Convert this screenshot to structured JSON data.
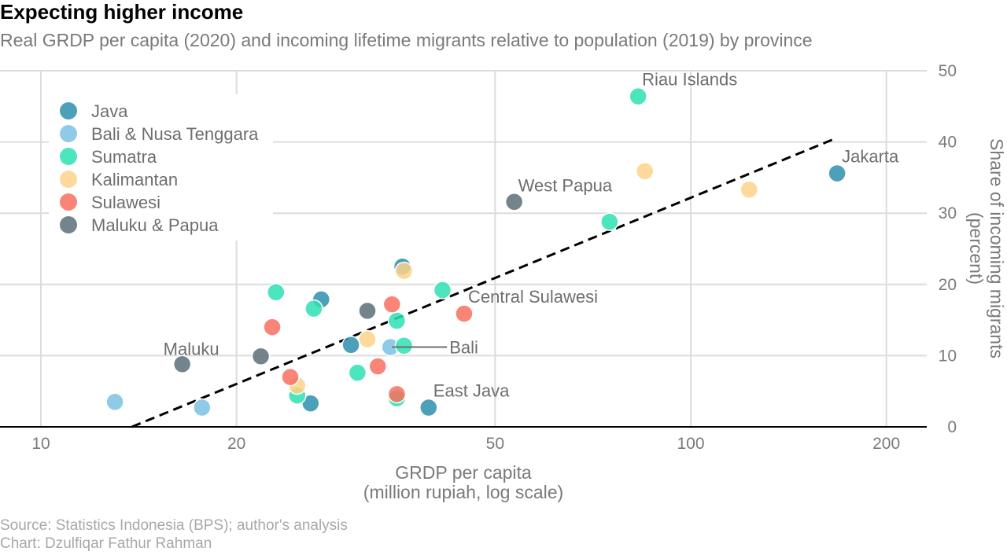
{
  "title": "Expecting higher income",
  "subtitle": "Real GRDP per capita (2020) and incoming lifetime migrants relative to population (2019) by province",
  "caption": {
    "source": "Source: Statistics Indonesia (BPS); author's analysis",
    "chart": "Chart: Dzulfiqar Fathur Rahman"
  },
  "chart_data": {
    "type": "scatter",
    "xlabel_line1": "GRDP per capita",
    "xlabel_line2": "(million rupiah, log scale)",
    "ylabel_line1": "Share of incoming migrants",
    "ylabel_line2": "(percent)",
    "x_scale": "log",
    "xlim": [
      9.5,
      240
    ],
    "ylim": [
      0,
      50
    ],
    "x_ticks": [
      10,
      20,
      50,
      100,
      200
    ],
    "y_ticks": [
      0,
      10,
      20,
      30,
      40,
      50
    ],
    "grid": true,
    "legend_position": "top-left",
    "trendline": {
      "style": "dashed",
      "x": [
        13.8,
        165
      ],
      "y": [
        0,
        40.3
      ]
    },
    "series": [
      {
        "name": "Java",
        "color": "#2e8fad",
        "points": [
          {
            "x": 168,
            "y": 35.6,
            "label": "Jakarta"
          },
          {
            "x": 39.5,
            "y": 2.7,
            "label": "East Java"
          },
          {
            "x": 36.0,
            "y": 22.5
          },
          {
            "x": 27.0,
            "y": 17.9
          },
          {
            "x": 30.0,
            "y": 11.5
          },
          {
            "x": 26.0,
            "y": 3.3
          }
        ]
      },
      {
        "name": "Bali & Nusa Tenggara",
        "color": "#7bc2e3",
        "points": [
          {
            "x": 34.5,
            "y": 11.2,
            "label": "Bali"
          },
          {
            "x": 13.0,
            "y": 3.5
          },
          {
            "x": 17.7,
            "y": 2.7
          }
        ]
      },
      {
        "name": "Sumatra",
        "color": "#2ee0b2",
        "points": [
          {
            "x": 83.0,
            "y": 46.4,
            "label": "Riau Islands"
          },
          {
            "x": 75.0,
            "y": 28.8
          },
          {
            "x": 41.5,
            "y": 19.2
          },
          {
            "x": 23.0,
            "y": 18.9
          },
          {
            "x": 26.3,
            "y": 16.6
          },
          {
            "x": 35.3,
            "y": 14.9
          },
          {
            "x": 36.2,
            "y": 11.4
          },
          {
            "x": 30.7,
            "y": 7.6
          },
          {
            "x": 24.8,
            "y": 4.4
          },
          {
            "x": 35.3,
            "y": 4.0
          }
        ]
      },
      {
        "name": "Kalimantan",
        "color": "#fdd28a",
        "points": [
          {
            "x": 85.0,
            "y": 35.9
          },
          {
            "x": 123.0,
            "y": 33.3
          },
          {
            "x": 36.2,
            "y": 21.9
          },
          {
            "x": 31.8,
            "y": 12.3
          },
          {
            "x": 24.8,
            "y": 5.8
          }
        ]
      },
      {
        "name": "Sulawesi",
        "color": "#f7705f",
        "points": [
          {
            "x": 44.8,
            "y": 15.9,
            "label": "Central Sulawesi"
          },
          {
            "x": 34.7,
            "y": 17.2
          },
          {
            "x": 22.7,
            "y": 14.0
          },
          {
            "x": 33.0,
            "y": 8.5
          },
          {
            "x": 24.2,
            "y": 7.0
          },
          {
            "x": 35.3,
            "y": 4.6
          }
        ]
      },
      {
        "name": "Maluku & Papua",
        "color": "#5c6e79",
        "points": [
          {
            "x": 53.5,
            "y": 31.6,
            "label": "West Papua"
          },
          {
            "x": 16.5,
            "y": 8.8,
            "label": "Maluku"
          },
          {
            "x": 21.8,
            "y": 9.9
          },
          {
            "x": 31.8,
            "y": 16.3
          }
        ]
      }
    ]
  }
}
